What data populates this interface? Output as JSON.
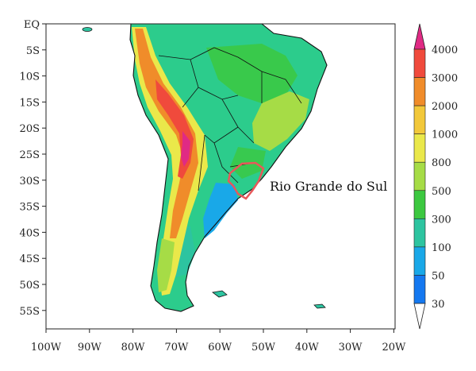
{
  "map": {
    "lat_ticks": [
      "EQ",
      "5S",
      "10S",
      "15S",
      "20S",
      "25S",
      "30S",
      "35S",
      "40S",
      "45S",
      "50S",
      "55S"
    ],
    "lon_ticks": [
      "100W",
      "90W",
      "80W",
      "70W",
      "60W",
      "50W",
      "40W",
      "30W",
      "20W"
    ],
    "annotation": "Rio Grande do Sul",
    "highlight_color": "#e8585a"
  },
  "colorbar": {
    "levels": [
      "4000",
      "3000",
      "2000",
      "1000",
      "800",
      "500",
      "300",
      "100",
      "50",
      "30"
    ],
    "colors": [
      "#e02a84",
      "#f04a3c",
      "#f08c2a",
      "#f2c83a",
      "#eae84a",
      "#a6dc46",
      "#3cc840",
      "#2dc4a0",
      "#19a8e8",
      "#1478f0",
      "#ffffff"
    ]
  }
}
